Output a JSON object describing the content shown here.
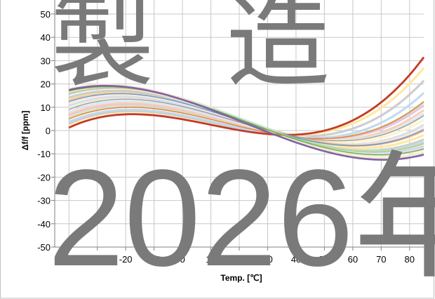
{
  "chart_data": {
    "type": "line",
    "xlabel": "Temp. [℃]",
    "ylabel": "Δf/f [ppm]",
    "xlim": [
      -45,
      85
    ],
    "ylim": [
      -50,
      50
    ],
    "xticks": [
      -40,
      -30,
      -20,
      -10,
      0,
      10,
      20,
      30,
      40,
      50,
      60,
      70,
      80
    ],
    "yticks": [
      -50,
      -40,
      -30,
      -20,
      -10,
      0,
      10,
      20,
      30,
      40,
      50
    ],
    "grid": true,
    "legend": "none",
    "curve_model": "cubic",
    "inflection_temp_c": 26,
    "series": [
      {
        "color": "#c0392b",
        "values": [
          [
            -40,
            0.9
          ],
          [
            -30,
            5.5
          ],
          [
            -20,
            7.3
          ],
          [
            -10,
            6.9
          ],
          [
            0,
            5.0
          ],
          [
            10,
            2.4
          ],
          [
            20,
            -0.1
          ],
          [
            26,
            -1.2
          ],
          [
            30,
            -1.8
          ],
          [
            40,
            -2.2
          ],
          [
            50,
            0.0
          ],
          [
            60,
            4.9
          ],
          [
            70,
            12.9
          ],
          [
            85,
            30.9
          ]
        ]
      },
      {
        "color": "#ed7d31",
        "values": [
          [
            -40,
            4.6
          ],
          [
            -30,
            8.8
          ],
          [
            -20,
            10.3
          ],
          [
            -10,
            9.6
          ],
          [
            0,
            7.5
          ],
          [
            10,
            4.6
          ],
          [
            20,
            1.6
          ],
          [
            26,
            0.0
          ],
          [
            30,
            -0.9
          ],
          [
            40,
            -2.9
          ],
          [
            50,
            -3.5
          ],
          [
            60,
            -2.0
          ],
          [
            70,
            2.0
          ],
          [
            85,
            12.0
          ]
        ]
      },
      {
        "color": "#9e9e9e",
        "values": [
          [
            -40,
            8.8
          ],
          [
            -30,
            12.6
          ],
          [
            -20,
            13.7
          ],
          [
            -10,
            12.7
          ],
          [
            0,
            10.3
          ],
          [
            10,
            7.0
          ],
          [
            20,
            3.5
          ],
          [
            26,
            1.3
          ],
          [
            30,
            0.2
          ],
          [
            40,
            -2.5
          ],
          [
            50,
            -4.1
          ],
          [
            60,
            -4.1
          ],
          [
            70,
            -1.7
          ],
          [
            85,
            6.3
          ]
        ]
      },
      {
        "color": "#5b9bd5",
        "values": [
          [
            -40,
            12.1
          ],
          [
            -30,
            15.4
          ],
          [
            -20,
            16.1
          ],
          [
            -10,
            14.7
          ],
          [
            0,
            11.8
          ],
          [
            10,
            8.1
          ],
          [
            20,
            4.2
          ],
          [
            26,
            1.7
          ],
          [
            30,
            0.2
          ],
          [
            40,
            -3.0
          ],
          [
            50,
            -5.4
          ],
          [
            60,
            -6.4
          ],
          [
            70,
            -5.3
          ],
          [
            85,
            0.2
          ]
        ]
      },
      {
        "color": "#a9d18e",
        "values": [
          [
            -40,
            15.5
          ],
          [
            -30,
            18.2
          ],
          [
            -20,
            18.5
          ],
          [
            -10,
            16.7
          ],
          [
            0,
            13.3
          ],
          [
            10,
            9.2
          ],
          [
            20,
            4.9
          ],
          [
            26,
            2.2
          ],
          [
            30,
            0.5
          ],
          [
            40,
            -3.4
          ],
          [
            50,
            -6.6
          ],
          [
            60,
            -8.6
          ],
          [
            70,
            -8.9
          ],
          [
            85,
            -5.7
          ]
        ]
      },
      {
        "color": "#70ad47",
        "values": [
          [
            -40,
            16.7
          ],
          [
            -30,
            18.8
          ],
          [
            -20,
            18.7
          ],
          [
            -10,
            16.8
          ],
          [
            0,
            13.3
          ],
          [
            10,
            9.1
          ],
          [
            20,
            4.7
          ],
          [
            26,
            1.9
          ],
          [
            30,
            0.2
          ],
          [
            40,
            -3.8
          ],
          [
            50,
            -7.2
          ],
          [
            60,
            -9.4
          ],
          [
            70,
            -10.2
          ],
          [
            85,
            -8.1
          ]
        ]
      },
      {
        "color": "#8064a2",
        "values": [
          [
            -40,
            17.8
          ],
          [
            -30,
            18.9
          ],
          [
            -20,
            18.4
          ],
          [
            -10,
            16.4
          ],
          [
            0,
            13.2
          ],
          [
            10,
            9.1
          ],
          [
            20,
            4.5
          ],
          [
            26,
            1.3
          ],
          [
            30,
            -0.4
          ],
          [
            40,
            -4.7
          ],
          [
            50,
            -8.8
          ],
          [
            60,
            -11.9
          ],
          [
            70,
            -13.3
          ],
          [
            85,
            -9.8
          ]
        ]
      }
    ],
    "band": {
      "colors": [
        "#f4b183",
        "#ffe699",
        "#c9c9c9",
        "#bdd7ee",
        "#c5e0b3",
        "#d9c3e6",
        "#f8cbad",
        "#dae3f3",
        "#e2efda",
        "#fff2cc",
        "#d6dce5",
        "#fbe5d6"
      ],
      "count": 24
    }
  },
  "watermark": {
    "line1": "製造",
    "line2": "2026年",
    "color": "#7a7a7a"
  }
}
